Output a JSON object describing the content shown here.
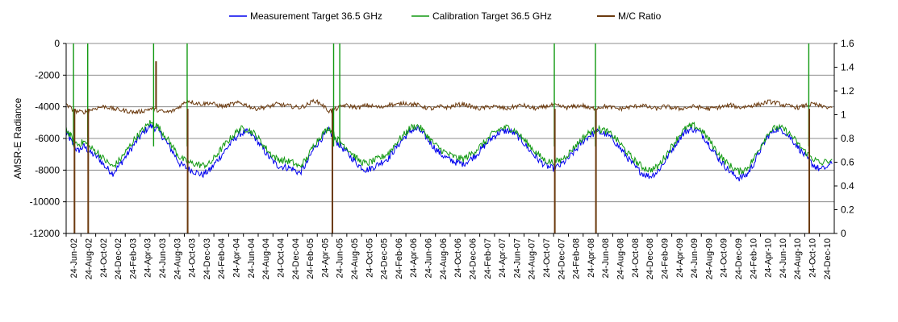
{
  "chart_data": {
    "type": "line",
    "ylabel": "AMSR-E Radiance",
    "y_left": {
      "min": -12000,
      "max": 0,
      "ticks": [
        "0",
        "-2000",
        "-4000",
        "-6000",
        "-8000",
        "-10000",
        "-12000"
      ]
    },
    "y_right": {
      "min": 0,
      "max": 1.6,
      "ticks": [
        "1.6",
        "1.4",
        "1.2",
        "1",
        "0.8",
        "0.6",
        "0.4",
        "0.2",
        "0"
      ]
    },
    "grid": true,
    "legend_position": "top",
    "x_range": [
      "2002-06-24",
      "2011-01-24"
    ],
    "x_tick_labels": [
      "24-Jun-02",
      "24-Aug-02",
      "24-Oct-02",
      "24-Dec-02",
      "24-Feb-03",
      "24-Apr-03",
      "24-Jun-03",
      "24-Aug-03",
      "24-Oct-03",
      "24-Dec-03",
      "24-Feb-04",
      "24-Apr-04",
      "24-Jun-04",
      "24-Aug-04",
      "24-Oct-04",
      "24-Dec-04",
      "24-Feb-05",
      "24-Apr-05",
      "24-Jun-05",
      "24-Aug-05",
      "24-Oct-05",
      "24-Dec-05",
      "24-Feb-06",
      "24-Apr-06",
      "24-Jun-06",
      "24-Aug-06",
      "24-Oct-06",
      "24-Dec-06",
      "24-Feb-07",
      "24-Apr-07",
      "24-Jun-07",
      "24-Aug-07",
      "24-Oct-07",
      "24-Dec-07",
      "24-Feb-08",
      "24-Apr-08",
      "24-Jun-08",
      "24-Aug-08",
      "24-Oct-08",
      "24-Dec-08",
      "24-Feb-09",
      "24-Apr-09",
      "24-Jun-09",
      "24-Aug-09",
      "24-Oct-09",
      "24-Dec-09",
      "24-Feb-10",
      "24-Apr-10",
      "24-Jun-10",
      "24-Aug-10",
      "24-Oct-10",
      "24-Dec-10"
    ],
    "series": [
      {
        "name": "Measurement Target 36.5 GHz",
        "axis": "left",
        "color": "#0000ee",
        "x": [
          "2002-06-24",
          "2002-07-15",
          "2002-08-10",
          "2002-09-05",
          "2002-10-01",
          "2002-11-01",
          "2002-12-01",
          "2003-01-01",
          "2003-02-01",
          "2003-03-01",
          "2003-04-01",
          "2003-05-01",
          "2003-06-01",
          "2003-07-01",
          "2003-08-01",
          "2003-09-01",
          "2003-10-01",
          "2003-11-01",
          "2003-12-01",
          "2004-01-01",
          "2004-02-01",
          "2004-03-01",
          "2004-04-01",
          "2004-05-01",
          "2004-06-01",
          "2004-07-01",
          "2004-08-01",
          "2004-09-01",
          "2004-10-01",
          "2004-11-01",
          "2004-12-01",
          "2005-01-01",
          "2005-02-01",
          "2005-03-01",
          "2005-04-01",
          "2005-05-01",
          "2005-06-01",
          "2005-07-01",
          "2005-08-01",
          "2005-09-01",
          "2005-10-01",
          "2005-11-01",
          "2005-12-01",
          "2006-01-01",
          "2006-02-01",
          "2006-03-01",
          "2006-04-01",
          "2006-05-01",
          "2006-06-01",
          "2006-07-01",
          "2006-08-01",
          "2006-09-01",
          "2006-10-01",
          "2006-11-01",
          "2006-12-01",
          "2007-01-01",
          "2007-02-01",
          "2007-03-01",
          "2007-04-01",
          "2007-05-01",
          "2007-06-01",
          "2007-07-01",
          "2007-08-01",
          "2007-09-01",
          "2007-10-01",
          "2007-11-01",
          "2007-12-01",
          "2008-01-01",
          "2008-02-01",
          "2008-03-01",
          "2008-04-01",
          "2008-05-01",
          "2008-06-01",
          "2008-07-01",
          "2008-08-01",
          "2008-09-01",
          "2008-10-01",
          "2008-11-01",
          "2008-12-01",
          "2009-01-01",
          "2009-02-01",
          "2009-03-01",
          "2009-04-01",
          "2009-05-01",
          "2009-06-01",
          "2009-07-01",
          "2009-08-01",
          "2009-09-01",
          "2009-10-01",
          "2009-11-01",
          "2009-12-01",
          "2010-01-01",
          "2010-02-01",
          "2010-03-01",
          "2010-04-01",
          "2010-05-01",
          "2010-06-01",
          "2010-07-01",
          "2010-08-01",
          "2010-09-01",
          "2010-10-01",
          "2010-11-01",
          "2010-12-01",
          "2011-01-15"
        ],
        "values": [
          -5600,
          -6200,
          -6800,
          -6500,
          -6900,
          -7200,
          -7800,
          -8200,
          -7600,
          -7000,
          -6300,
          -5700,
          -5200,
          -5400,
          -6100,
          -6800,
          -7600,
          -7900,
          -8100,
          -8300,
          -8000,
          -7400,
          -6800,
          -6200,
          -5700,
          -5600,
          -5900,
          -6600,
          -7200,
          -7700,
          -7800,
          -7900,
          -8200,
          -7600,
          -6600,
          -6000,
          -5500,
          -6200,
          -6700,
          -7200,
          -7700,
          -8000,
          -7800,
          -7500,
          -7200,
          -6600,
          -6000,
          -5500,
          -5400,
          -5900,
          -6500,
          -7000,
          -7300,
          -7500,
          -7600,
          -7300,
          -6900,
          -6400,
          -5900,
          -5600,
          -5500,
          -5700,
          -6200,
          -6800,
          -7300,
          -7700,
          -7900,
          -7700,
          -7300,
          -6800,
          -6200,
          -5800,
          -5600,
          -5700,
          -6000,
          -6600,
          -7200,
          -7800,
          -8200,
          -8400,
          -8100,
          -7500,
          -6700,
          -6000,
          -5500,
          -5400,
          -5700,
          -6400,
          -7100,
          -7700,
          -8200,
          -8500,
          -8300,
          -7600,
          -6600,
          -5800,
          -5400,
          -5500,
          -6000,
          -6600,
          -7200,
          -7700,
          -8000,
          -7600
        ]
      },
      {
        "name": "Calibration Target 36.5 GHz",
        "axis": "left",
        "color": "#119911",
        "x": [
          "2002-06-24",
          "2002-07-15",
          "2002-08-10",
          "2002-09-05",
          "2002-10-01",
          "2002-11-01",
          "2002-12-01",
          "2003-01-01",
          "2003-02-01",
          "2003-03-01",
          "2003-04-01",
          "2003-05-01",
          "2003-06-01",
          "2003-07-01",
          "2003-08-01",
          "2003-09-01",
          "2003-10-01",
          "2003-11-01",
          "2003-12-01",
          "2004-01-01",
          "2004-02-01",
          "2004-03-01",
          "2004-04-01",
          "2004-05-01",
          "2004-06-01",
          "2004-07-01",
          "2004-08-01",
          "2004-09-01",
          "2004-10-01",
          "2004-11-01",
          "2004-12-01",
          "2005-01-01",
          "2005-02-01",
          "2005-03-01",
          "2005-04-01",
          "2005-05-01",
          "2005-06-01",
          "2005-07-01",
          "2005-08-01",
          "2005-09-01",
          "2005-10-01",
          "2005-11-01",
          "2005-12-01",
          "2006-01-01",
          "2006-02-01",
          "2006-03-01",
          "2006-04-01",
          "2006-05-01",
          "2006-06-01",
          "2006-07-01",
          "2006-08-01",
          "2006-09-01",
          "2006-10-01",
          "2006-11-01",
          "2006-12-01",
          "2007-01-01",
          "2007-02-01",
          "2007-03-01",
          "2007-04-01",
          "2007-05-01",
          "2007-06-01",
          "2007-07-01",
          "2007-08-01",
          "2007-09-01",
          "2007-10-01",
          "2007-11-01",
          "2007-12-01",
          "2008-01-01",
          "2008-02-01",
          "2008-03-01",
          "2008-04-01",
          "2008-05-01",
          "2008-06-01",
          "2008-07-01",
          "2008-08-01",
          "2008-09-01",
          "2008-10-01",
          "2008-11-01",
          "2008-12-01",
          "2009-01-01",
          "2009-02-01",
          "2009-03-01",
          "2009-04-01",
          "2009-05-01",
          "2009-06-01",
          "2009-07-01",
          "2009-08-01",
          "2009-09-01",
          "2009-10-01",
          "2009-11-01",
          "2009-12-01",
          "2010-01-01",
          "2010-02-01",
          "2010-03-01",
          "2010-04-01",
          "2010-05-01",
          "2010-06-01",
          "2010-07-01",
          "2010-08-01",
          "2010-09-01",
          "2010-10-01",
          "2010-11-01",
          "2010-12-01",
          "2011-01-15"
        ],
        "values": [
          -5400,
          -5900,
          -6400,
          -6200,
          -6600,
          -6900,
          -7400,
          -7800,
          -7300,
          -6700,
          -6000,
          -5500,
          -5000,
          -5200,
          -5800,
          -6500,
          -7200,
          -7500,
          -7600,
          -7700,
          -7600,
          -7000,
          -6400,
          -5900,
          -5400,
          -5400,
          -5700,
          -6300,
          -6900,
          -7300,
          -7400,
          -7500,
          -7800,
          -7300,
          -6400,
          -5800,
          -5300,
          -6000,
          -6400,
          -6900,
          -7400,
          -7600,
          -7400,
          -7200,
          -6900,
          -6300,
          -5800,
          -5300,
          -5200,
          -5700,
          -6300,
          -6700,
          -7000,
          -7200,
          -7300,
          -7000,
          -6600,
          -6200,
          -5700,
          -5400,
          -5300,
          -5500,
          -6000,
          -6500,
          -7000,
          -7400,
          -7500,
          -7400,
          -7000,
          -6500,
          -6000,
          -5600,
          -5400,
          -5500,
          -5800,
          -6300,
          -6900,
          -7400,
          -7800,
          -8000,
          -7800,
          -7200,
          -6500,
          -5800,
          -5300,
          -5200,
          -5500,
          -6100,
          -6800,
          -7400,
          -7800,
          -8100,
          -7900,
          -7300,
          -6400,
          -5600,
          -5300,
          -5400,
          -5800,
          -6400,
          -6900,
          -7300,
          -7600,
          -7300
        ]
      },
      {
        "name": "M/C Ratio",
        "axis": "right",
        "color": "#6b3a0e",
        "x": [
          "2002-06-24",
          "2002-08-01",
          "2002-09-01",
          "2002-10-01",
          "2002-11-01",
          "2002-12-01",
          "2003-01-01",
          "2003-02-01",
          "2003-03-01",
          "2003-04-01",
          "2003-05-01",
          "2003-06-01",
          "2003-07-01",
          "2003-08-01",
          "2003-09-01",
          "2003-10-01",
          "2003-11-01",
          "2003-12-01",
          "2004-01-01",
          "2004-02-01",
          "2004-03-01",
          "2004-04-01",
          "2004-05-01",
          "2004-06-01",
          "2004-07-01",
          "2004-08-01",
          "2004-09-01",
          "2004-10-01",
          "2004-11-01",
          "2004-12-01",
          "2005-01-01",
          "2005-02-01",
          "2005-03-01",
          "2005-04-01",
          "2005-05-01",
          "2005-06-01",
          "2005-07-01",
          "2005-08-01",
          "2005-09-01",
          "2005-10-01",
          "2005-11-01",
          "2005-12-01",
          "2006-01-01",
          "2006-02-01",
          "2006-03-01",
          "2006-04-01",
          "2006-05-01",
          "2006-06-01",
          "2006-07-01",
          "2006-08-01",
          "2006-09-01",
          "2006-10-01",
          "2006-11-01",
          "2006-12-01",
          "2007-01-01",
          "2007-02-01",
          "2007-03-01",
          "2007-04-01",
          "2007-05-01",
          "2007-06-01",
          "2007-07-01",
          "2007-08-01",
          "2007-09-01",
          "2007-10-01",
          "2007-11-01",
          "2007-12-01",
          "2008-01-01",
          "2008-02-01",
          "2008-03-01",
          "2008-04-01",
          "2008-05-01",
          "2008-06-01",
          "2008-07-01",
          "2008-08-01",
          "2008-09-01",
          "2008-10-01",
          "2008-11-01",
          "2008-12-01",
          "2009-01-01",
          "2009-02-01",
          "2009-03-01",
          "2009-04-01",
          "2009-05-01",
          "2009-06-01",
          "2009-07-01",
          "2009-08-01",
          "2009-09-01",
          "2009-10-01",
          "2009-11-01",
          "2009-12-01",
          "2010-01-01",
          "2010-02-01",
          "2010-03-01",
          "2010-04-01",
          "2010-05-01",
          "2010-06-01",
          "2010-07-01",
          "2010-08-01",
          "2010-09-01",
          "2010-10-01",
          "2010-11-01",
          "2010-12-01",
          "2011-01-15"
        ],
        "values": [
          1.08,
          1.03,
          1.02,
          1.04,
          1.06,
          1.07,
          1.05,
          1.04,
          1.03,
          1.02,
          1.03,
          1.05,
          1.04,
          1.02,
          1.03,
          1.07,
          1.12,
          1.1,
          1.09,
          1.1,
          1.08,
          1.07,
          1.09,
          1.1,
          1.08,
          1.05,
          1.06,
          1.07,
          1.09,
          1.08,
          1.07,
          1.06,
          1.08,
          1.12,
          1.09,
          1.03,
          1.05,
          1.08,
          1.07,
          1.06,
          1.08,
          1.07,
          1.06,
          1.09,
          1.08,
          1.1,
          1.09,
          1.08,
          1.06,
          1.05,
          1.07,
          1.06,
          1.08,
          1.09,
          1.07,
          1.05,
          1.06,
          1.07,
          1.06,
          1.05,
          1.07,
          1.08,
          1.06,
          1.05,
          1.07,
          1.08,
          1.07,
          1.06,
          1.07,
          1.08,
          1.05,
          1.06,
          1.07,
          1.06,
          1.05,
          1.06,
          1.07,
          1.08,
          1.06,
          1.05,
          1.07,
          1.06,
          1.05,
          1.06,
          1.07,
          1.06,
          1.05,
          1.06,
          1.07,
          1.08,
          1.06,
          1.07,
          1.08,
          1.09,
          1.11,
          1.1,
          1.08,
          1.07,
          1.06,
          1.08,
          1.09,
          1.07,
          1.06
        ]
      }
    ],
    "spikes": [
      {
        "date": "2002-07-24",
        "series": "Calibration Target 36.5 GHz",
        "to": 0
      },
      {
        "date": "2002-07-28",
        "series": "M/C Ratio",
        "to": 0
      },
      {
        "date": "2002-09-20",
        "series": "Calibration Target 36.5 GHz",
        "to": 0
      },
      {
        "date": "2002-09-22",
        "series": "M/C Ratio",
        "to": 0
      },
      {
        "date": "2003-06-16",
        "series": "Calibration Target 36.5 GHz",
        "to": 0
      },
      {
        "date": "2003-06-26",
        "series": "M/C Ratio",
        "to": 1.45
      },
      {
        "date": "2003-10-31",
        "series": "Calibration Target 36.5 GHz",
        "to": 0
      },
      {
        "date": "2003-11-02",
        "series": "M/C Ratio",
        "to": 0
      },
      {
        "date": "2005-06-15",
        "series": "M/C Ratio",
        "to": 0
      },
      {
        "date": "2005-06-20",
        "series": "Calibration Target 36.5 GHz",
        "to": 0
      },
      {
        "date": "2005-07-15",
        "series": "Calibration Target 36.5 GHz",
        "to": 0
      },
      {
        "date": "2007-12-08",
        "series": "Calibration Target 36.5 GHz",
        "to": 0
      },
      {
        "date": "2007-12-10",
        "series": "M/C Ratio",
        "to": 0
      },
      {
        "date": "2008-05-24",
        "series": "Calibration Target 36.5 GHz",
        "to": 0
      },
      {
        "date": "2008-05-26",
        "series": "M/C Ratio",
        "to": 0
      },
      {
        "date": "2010-10-12",
        "series": "Calibration Target 36.5 GHz",
        "to": 0
      },
      {
        "date": "2010-10-14",
        "series": "M/C Ratio",
        "to": 0
      }
    ]
  }
}
